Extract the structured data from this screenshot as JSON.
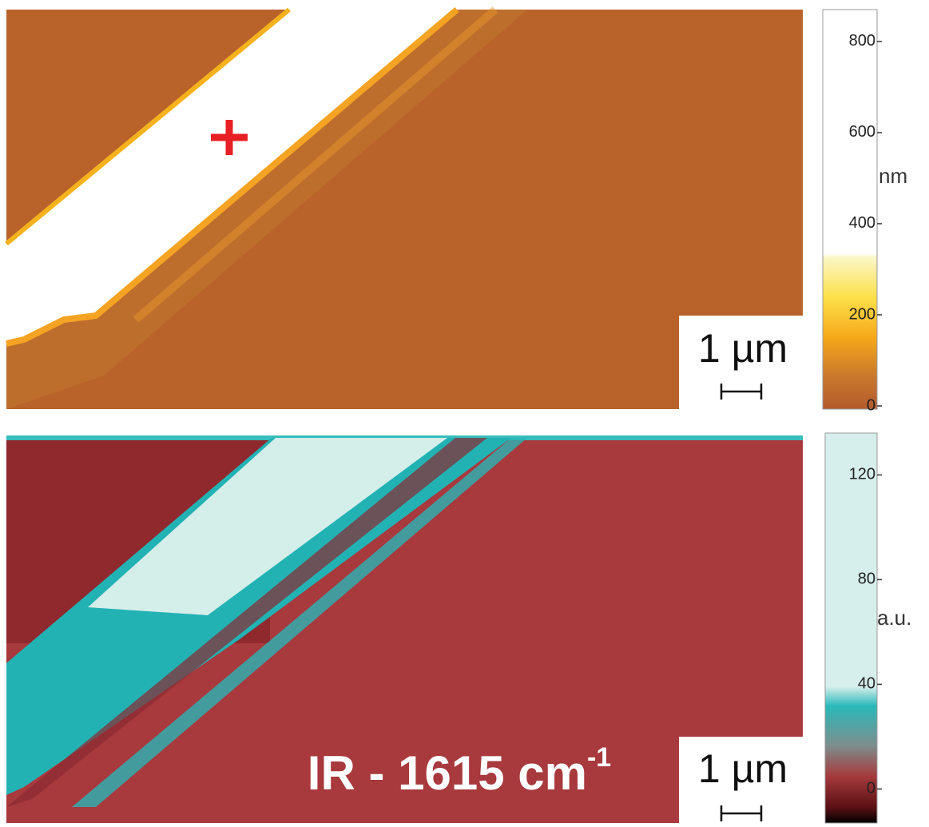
{
  "panels": [
    {
      "scale_bar": "1 µm",
      "colorbar": {
        "unit": "nm",
        "lim": [
          -7,
          870
        ],
        "ticks": [
          0,
          200,
          400,
          600,
          800
        ]
      }
    },
    {
      "label": "IR - 1615 cm",
      "label_sup": "-1",
      "scale_bar": "1 µm",
      "colorbar": {
        "unit": "a.u.",
        "lim": [
          -13,
          136
        ],
        "ticks": [
          0,
          40,
          80,
          120
        ]
      }
    }
  ]
}
